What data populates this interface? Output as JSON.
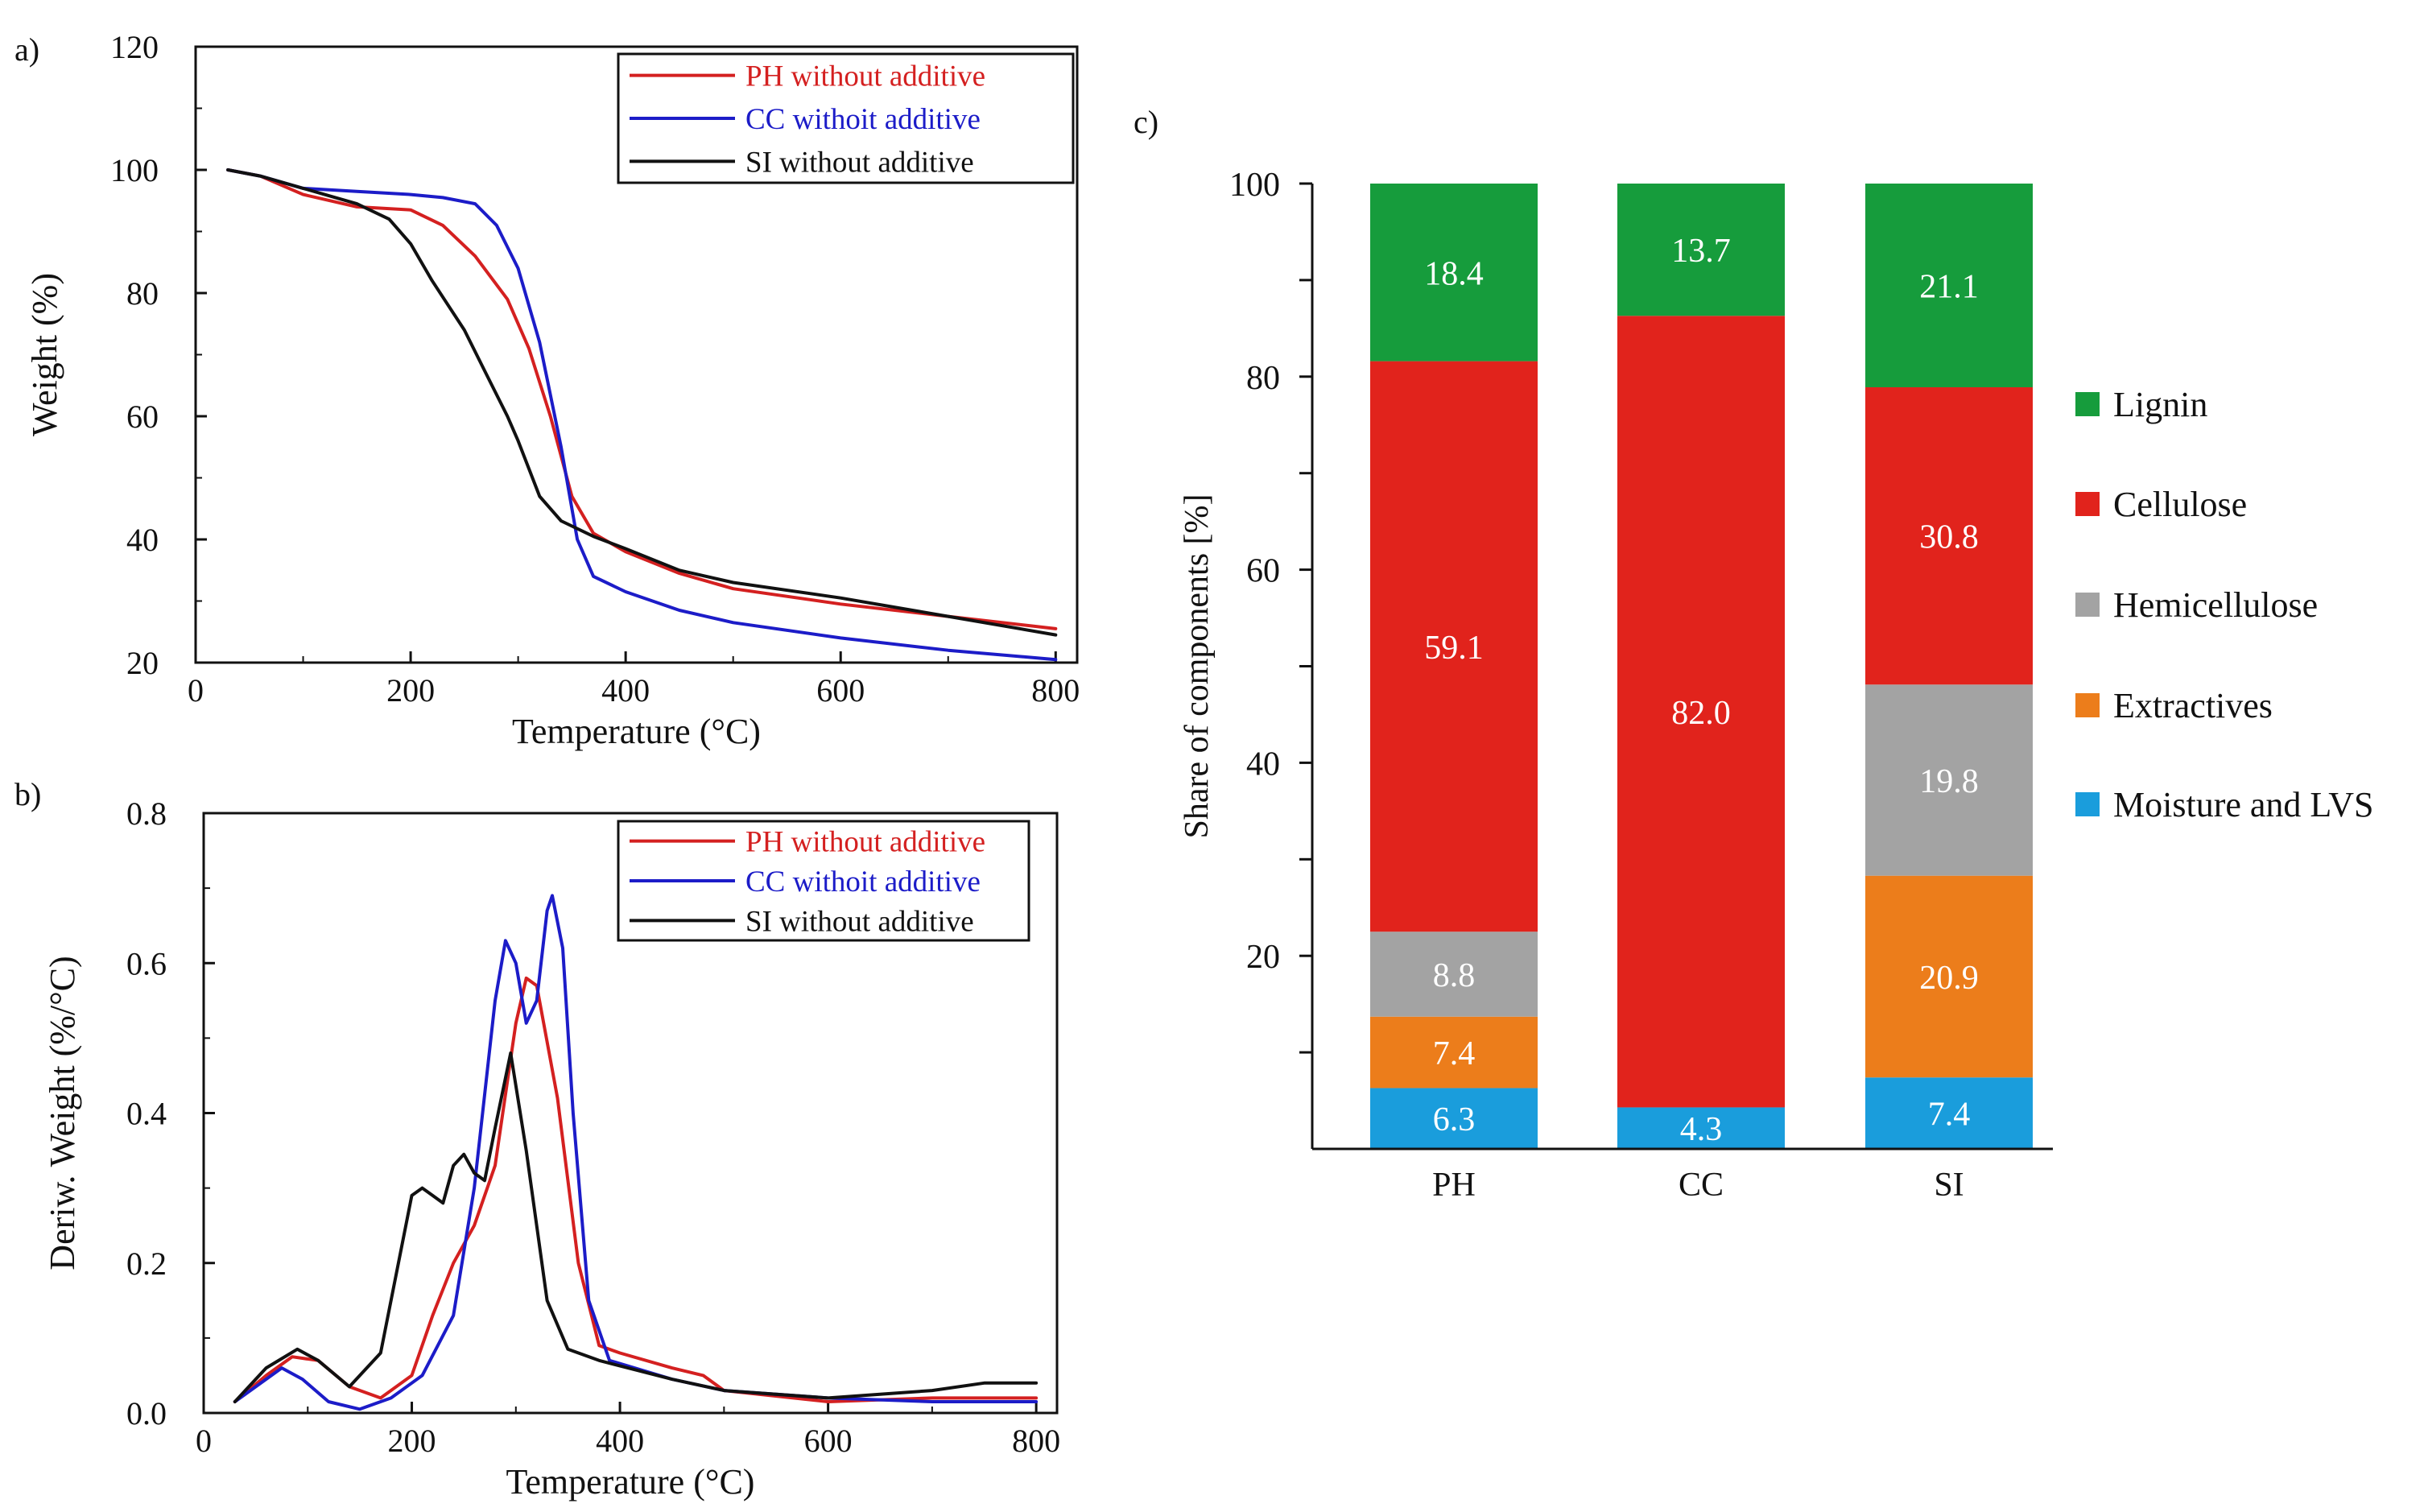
{
  "panel_labels": {
    "a": "a)",
    "b": "b)",
    "c": "c)"
  },
  "colors": {
    "ph_line": "#d42020",
    "cc_line": "#1c1cc8",
    "si_line": "#111111",
    "lignin": "#169c3c",
    "cellulose": "#e1231c",
    "hemicellulose": "#a3a3a3",
    "extractives": "#ec7d1b",
    "moisture": "#1a9ddc"
  },
  "chart_data": [
    {
      "id": "a",
      "type": "line",
      "title": "",
      "xlabel": "Temperature (°C)",
      "ylabel": "Weight (%)",
      "xlim": [
        0,
        820
      ],
      "ylim": [
        20,
        120
      ],
      "xticks": [
        {
          "value": 0,
          "label": "0"
        },
        {
          "value": 200,
          "label": "200"
        },
        {
          "value": 400,
          "label": "400"
        },
        {
          "value": 600,
          "label": "600"
        },
        {
          "value": 800,
          "label": "800"
        }
      ],
      "yticks": [
        {
          "value": 20,
          "label": "20"
        },
        {
          "value": 40,
          "label": "40"
        },
        {
          "value": 60,
          "label": "60"
        },
        {
          "value": 80,
          "label": "80"
        },
        {
          "value": 100,
          "label": "100"
        },
        {
          "value": 120,
          "label": "120"
        }
      ],
      "legend_position": "top-right",
      "series": [
        {
          "name": "PH without additive",
          "color": "#d42020",
          "x": [
            30,
            60,
            100,
            150,
            200,
            230,
            260,
            290,
            310,
            330,
            350,
            370,
            400,
            450,
            500,
            600,
            700,
            800
          ],
          "y": [
            100,
            99,
            96,
            94,
            93.5,
            91,
            86,
            79,
            71,
            60,
            47,
            41,
            38,
            34.5,
            32,
            29.5,
            27.5,
            25.5
          ]
        },
        {
          "name": "CC withoit additive",
          "color": "#1c1cc8",
          "x": [
            30,
            60,
            100,
            150,
            200,
            230,
            260,
            280,
            300,
            320,
            340,
            355,
            370,
            400,
            450,
            500,
            600,
            700,
            800
          ],
          "y": [
            100,
            99,
            97,
            96.5,
            96,
            95.5,
            94.5,
            91,
            84,
            72,
            55,
            40,
            34,
            31.5,
            28.5,
            26.5,
            24,
            22,
            20.5
          ]
        },
        {
          "name": "SI without additive",
          "color": "#111111",
          "x": [
            30,
            60,
            100,
            150,
            180,
            200,
            220,
            250,
            270,
            290,
            300,
            320,
            340,
            370,
            400,
            450,
            500,
            600,
            700,
            800
          ],
          "y": [
            100,
            99,
            97,
            94.5,
            92,
            88,
            82,
            74,
            67,
            60,
            56,
            47,
            43,
            40.5,
            38.5,
            35,
            33,
            30.5,
            27.5,
            24.5
          ]
        }
      ]
    },
    {
      "id": "b",
      "type": "line",
      "title": "",
      "xlabel": "Temperature (°C)",
      "ylabel": "Deriw. Weight (%/°C)",
      "xlim": [
        0,
        820
      ],
      "ylim": [
        0,
        0.8
      ],
      "xticks": [
        {
          "value": 0,
          "label": "0"
        },
        {
          "value": 200,
          "label": "200"
        },
        {
          "value": 400,
          "label": "400"
        },
        {
          "value": 600,
          "label": "600"
        },
        {
          "value": 800,
          "label": "800"
        }
      ],
      "yticks": [
        {
          "value": 0,
          "label": "0.0"
        },
        {
          "value": 0.2,
          "label": "0.2"
        },
        {
          "value": 0.4,
          "label": "0.4"
        },
        {
          "value": 0.6,
          "label": "0.6"
        },
        {
          "value": 0.8,
          "label": "0.8"
        }
      ],
      "legend_position": "top-right",
      "series": [
        {
          "name": "PH without additive",
          "color": "#d42020",
          "x": [
            30,
            60,
            85,
            110,
            140,
            170,
            200,
            220,
            240,
            260,
            280,
            300,
            310,
            320,
            340,
            360,
            380,
            400,
            450,
            480,
            500,
            600,
            700,
            800
          ],
          "y": [
            0.015,
            0.05,
            0.075,
            0.07,
            0.035,
            0.02,
            0.05,
            0.13,
            0.2,
            0.25,
            0.33,
            0.52,
            0.58,
            0.57,
            0.42,
            0.2,
            0.09,
            0.08,
            0.06,
            0.05,
            0.03,
            0.015,
            0.02,
            0.02
          ]
        },
        {
          "name": "CC withoit additive",
          "color": "#1c1cc8",
          "x": [
            30,
            55,
            75,
            95,
            120,
            150,
            180,
            210,
            240,
            260,
            280,
            290,
            300,
            310,
            320,
            330,
            335,
            345,
            355,
            370,
            390,
            450,
            500,
            600,
            700,
            800
          ],
          "y": [
            0.015,
            0.04,
            0.06,
            0.045,
            0.015,
            0.005,
            0.02,
            0.05,
            0.13,
            0.3,
            0.55,
            0.63,
            0.6,
            0.52,
            0.55,
            0.67,
            0.69,
            0.62,
            0.4,
            0.15,
            0.07,
            0.045,
            0.03,
            0.02,
            0.015,
            0.015
          ]
        },
        {
          "name": "SI without additive",
          "color": "#111111",
          "x": [
            30,
            60,
            90,
            110,
            140,
            170,
            190,
            200,
            210,
            220,
            230,
            240,
            250,
            260,
            270,
            280,
            295,
            310,
            330,
            350,
            380,
            450,
            500,
            600,
            650,
            700,
            750,
            800
          ],
          "y": [
            0.015,
            0.06,
            0.085,
            0.07,
            0.035,
            0.08,
            0.22,
            0.29,
            0.3,
            0.29,
            0.28,
            0.33,
            0.345,
            0.32,
            0.31,
            0.38,
            0.48,
            0.35,
            0.15,
            0.085,
            0.07,
            0.045,
            0.03,
            0.02,
            0.025,
            0.03,
            0.04,
            0.04
          ]
        }
      ]
    },
    {
      "id": "c",
      "type": "bar",
      "stacked": true,
      "title": "",
      "xlabel": "",
      "ylabel": "Share of components [%]",
      "ylim": [
        0,
        100
      ],
      "yticks": [
        {
          "value": 20,
          "label": "20"
        },
        {
          "value": 40,
          "label": "40"
        },
        {
          "value": 60,
          "label": "60"
        },
        {
          "value": 80,
          "label": "80"
        },
        {
          "value": 100,
          "label": "100"
        }
      ],
      "categories": [
        "PH",
        "CC",
        "SI"
      ],
      "series": [
        {
          "name": "Moisture and LVS",
          "color": "#1a9ddc",
          "values": [
            6.3,
            4.3,
            7.4
          ],
          "labels": [
            "6.3",
            "4.3",
            "7.4"
          ]
        },
        {
          "name": "Extractives",
          "color": "#ec7d1b",
          "values": [
            7.4,
            0,
            20.9
          ],
          "labels": [
            "7.4",
            "",
            "20.9"
          ]
        },
        {
          "name": "Hemicellulose",
          "color": "#a3a3a3",
          "values": [
            8.8,
            0,
            19.8
          ],
          "labels": [
            "8.8",
            "",
            "19.8"
          ]
        },
        {
          "name": "Cellulose",
          "color": "#e1231c",
          "values": [
            59.1,
            82.0,
            30.8
          ],
          "labels": [
            "59.1",
            "82.0",
            "30.8"
          ]
        },
        {
          "name": "Lignin",
          "color": "#169c3c",
          "values": [
            18.4,
            13.7,
            21.1
          ],
          "labels": [
            "18.4",
            "13.7",
            "21.1"
          ]
        }
      ],
      "legend": [
        "Lignin",
        "Cellulose",
        "Hemicellulose",
        "Extractives",
        "Moisture and LVS"
      ],
      "legend_position": "right"
    }
  ]
}
